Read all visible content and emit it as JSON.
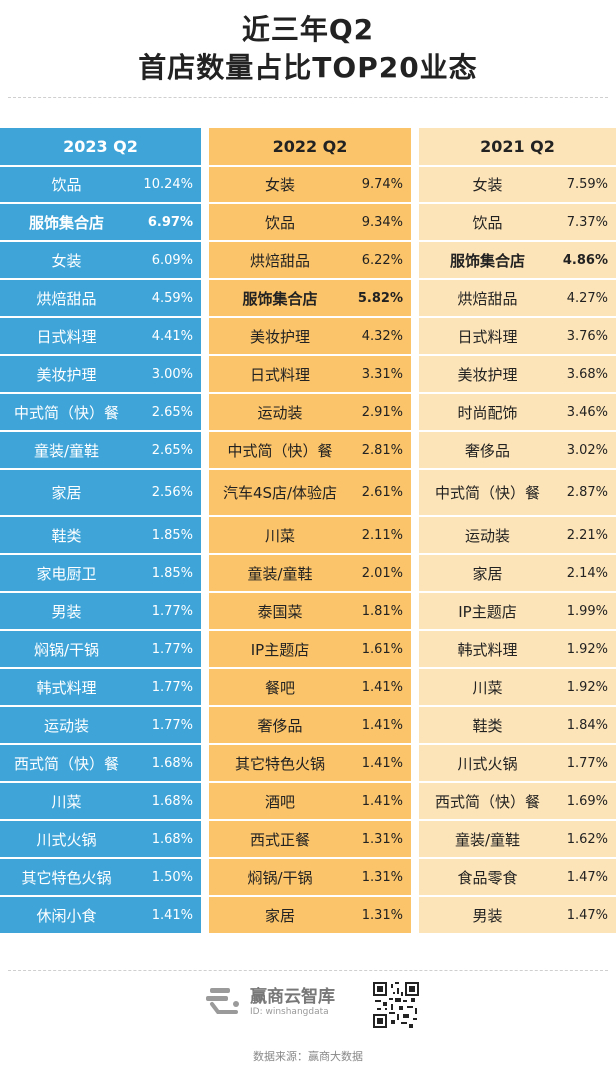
{
  "title": {
    "line1": "近三年Q2",
    "line2": "首店数量占比TOP20业态"
  },
  "columns": [
    {
      "header": "2023 Q2",
      "rows": [
        {
          "name": "饮品",
          "pct": "10.24%"
        },
        {
          "name": "服饰集合店",
          "pct": "6.97%",
          "highlight": true
        },
        {
          "name": "女装",
          "pct": "6.09%"
        },
        {
          "name": "烘焙甜品",
          "pct": "4.59%"
        },
        {
          "name": "日式料理",
          "pct": "4.41%"
        },
        {
          "name": "美妆护理",
          "pct": "3.00%"
        },
        {
          "name": "中式简（快）餐",
          "pct": "2.65%"
        },
        {
          "name": "童装/童鞋",
          "pct": "2.65%"
        },
        {
          "name": "家居",
          "pct": "2.56%"
        },
        {
          "name": "鞋类",
          "pct": "1.85%"
        },
        {
          "name": "家电厨卫",
          "pct": "1.85%"
        },
        {
          "name": "男装",
          "pct": "1.77%"
        },
        {
          "name": "焖锅/干锅",
          "pct": "1.77%"
        },
        {
          "name": "韩式料理",
          "pct": "1.77%"
        },
        {
          "name": "运动装",
          "pct": "1.77%"
        },
        {
          "name": "西式简（快）餐",
          "pct": "1.68%"
        },
        {
          "name": "川菜",
          "pct": "1.68%"
        },
        {
          "name": "川式火锅",
          "pct": "1.68%"
        },
        {
          "name": "其它特色火锅",
          "pct": "1.50%"
        },
        {
          "name": "休闲小食",
          "pct": "1.41%"
        }
      ]
    },
    {
      "header": "2022 Q2",
      "rows": [
        {
          "name": "女装",
          "pct": "9.74%"
        },
        {
          "name": "饮品",
          "pct": "9.34%"
        },
        {
          "name": "烘焙甜品",
          "pct": "6.22%"
        },
        {
          "name": "服饰集合店",
          "pct": "5.82%",
          "highlight": true
        },
        {
          "name": "美妆护理",
          "pct": "4.32%"
        },
        {
          "name": "日式料理",
          "pct": "3.31%"
        },
        {
          "name": "运动装",
          "pct": "2.91%"
        },
        {
          "name": "中式简（快）餐",
          "pct": "2.81%"
        },
        {
          "name": "汽车4S店/体验店",
          "pct": "2.61%"
        },
        {
          "name": "川菜",
          "pct": "2.11%"
        },
        {
          "name": "童装/童鞋",
          "pct": "2.01%"
        },
        {
          "name": "泰国菜",
          "pct": "1.81%"
        },
        {
          "name": "IP主题店",
          "pct": "1.61%"
        },
        {
          "name": "餐吧",
          "pct": "1.41%"
        },
        {
          "name": "奢侈品",
          "pct": "1.41%"
        },
        {
          "name": "其它特色火锅",
          "pct": "1.41%"
        },
        {
          "name": "酒吧",
          "pct": "1.41%"
        },
        {
          "name": "西式正餐",
          "pct": "1.31%"
        },
        {
          "name": "焖锅/干锅",
          "pct": "1.31%"
        },
        {
          "name": "家居",
          "pct": "1.31%"
        }
      ]
    },
    {
      "header": "2021 Q2",
      "rows": [
        {
          "name": "女装",
          "pct": "7.59%"
        },
        {
          "name": "饮品",
          "pct": "7.37%"
        },
        {
          "name": "服饰集合店",
          "pct": "4.86%",
          "highlight": true
        },
        {
          "name": "烘焙甜品",
          "pct": "4.27%"
        },
        {
          "name": "日式料理",
          "pct": "3.76%"
        },
        {
          "name": "美妆护理",
          "pct": "3.68%"
        },
        {
          "name": "时尚配饰",
          "pct": "3.46%"
        },
        {
          "name": "奢侈品",
          "pct": "3.02%"
        },
        {
          "name": "中式简（快）餐",
          "pct": "2.87%"
        },
        {
          "name": "运动装",
          "pct": "2.21%"
        },
        {
          "name": "家居",
          "pct": "2.14%"
        },
        {
          "name": "IP主题店",
          "pct": "1.99%"
        },
        {
          "name": "韩式料理",
          "pct": "1.92%"
        },
        {
          "name": "川菜",
          "pct": "1.92%"
        },
        {
          "name": "鞋类",
          "pct": "1.84%"
        },
        {
          "name": "川式火锅",
          "pct": "1.77%"
        },
        {
          "name": "西式简（快）餐",
          "pct": "1.69%"
        },
        {
          "name": "童装/童鞋",
          "pct": "1.62%"
        },
        {
          "name": "食品零食",
          "pct": "1.47%"
        },
        {
          "name": "男装",
          "pct": "1.47%"
        }
      ]
    }
  ],
  "footer": {
    "brand": "赢商云智库",
    "brand_id": "ID: winshangdata",
    "source": "数据来源：赢商大数据"
  },
  "colors": {
    "col2023": "#3fa5d9",
    "col2022": "#fbc46a",
    "col2021": "#fde4b8"
  }
}
